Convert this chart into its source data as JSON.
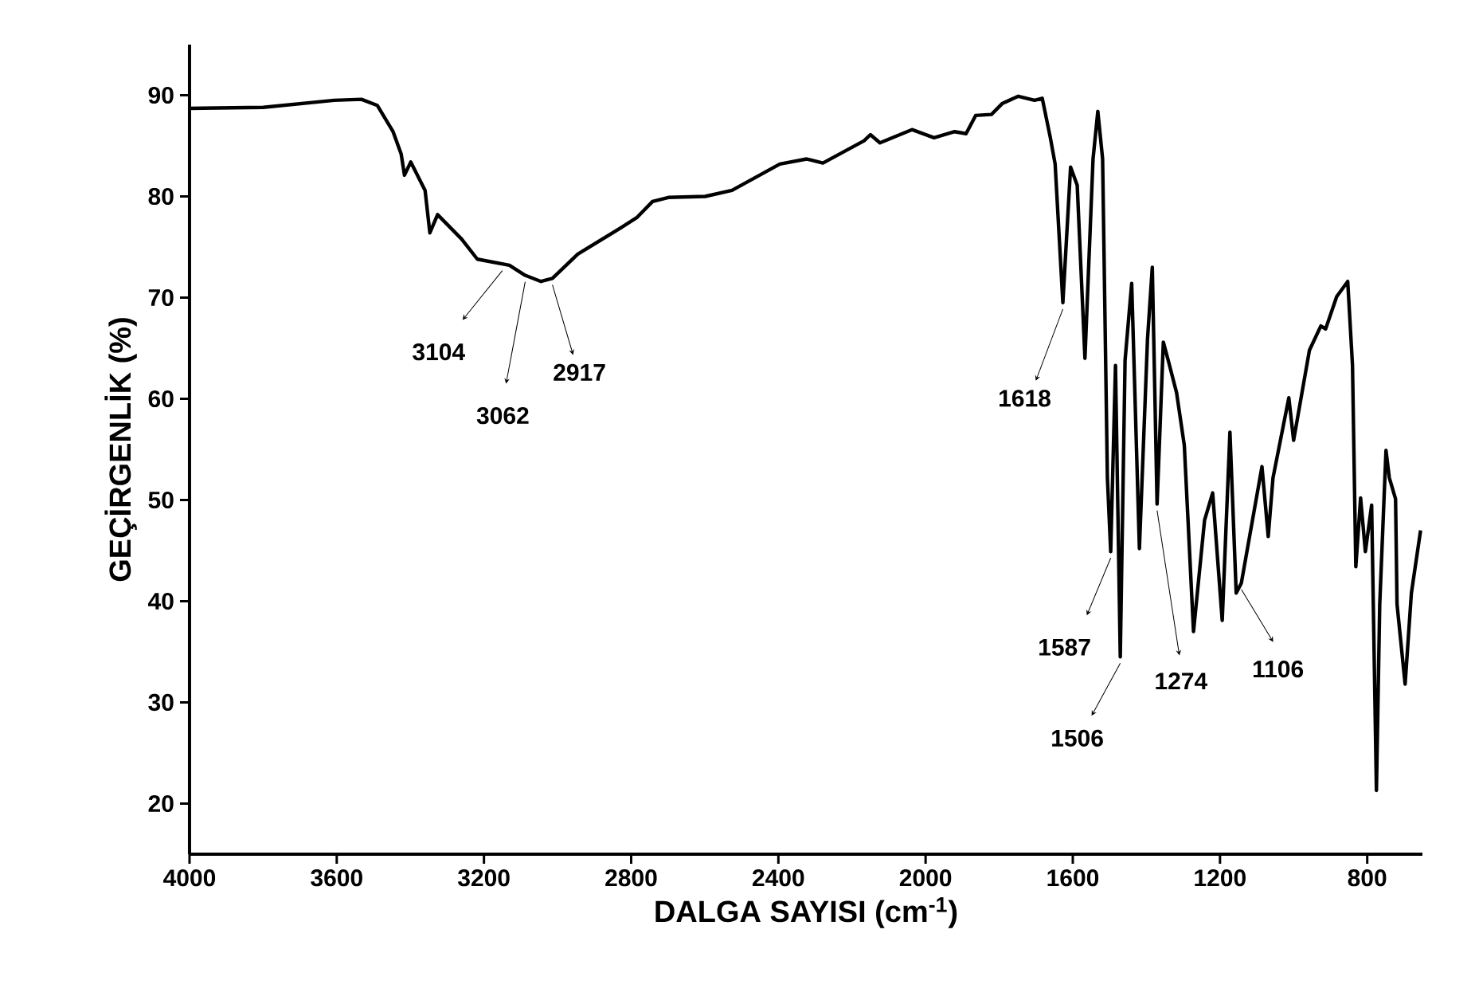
{
  "chart_data": {
    "type": "line",
    "xlabel": "DALGA SAYISI (cm$^{-1}$)",
    "ylabel": "GEÇİRGENLİK (%)",
    "color": "#000000",
    "x": [
      4000,
      3800,
      3607,
      3533,
      3490,
      3447,
      3425,
      3416,
      3399,
      3360,
      3347,
      3326,
      3261,
      3218,
      3131,
      3088,
      3045,
      3014,
      2945,
      2828,
      2785,
      2742,
      2699,
      2599,
      2526,
      2396,
      2323,
      2279,
      2167,
      2150,
      2124,
      2037,
      1977,
      1921,
      1890,
      1864,
      1821,
      1791,
      1748,
      1704,
      1683,
      1661,
      1648,
      1627,
      1606,
      1588,
      1567,
      1545,
      1532,
      1519,
      1506,
      1497,
      1484,
      1471,
      1458,
      1440,
      1419,
      1397,
      1384,
      1371,
      1354,
      1340,
      1318,
      1297,
      1272,
      1242,
      1220,
      1194,
      1173,
      1156,
      1142,
      1086,
      1069,
      1056,
      1013,
      1000,
      957,
      926,
      913,
      883,
      853,
      840,
      831,
      818,
      805,
      788,
      775,
      766,
      749,
      740,
      723,
      719,
      697,
      680,
      655
    ],
    "values": [
      88.7,
      88.8,
      89.5,
      89.6,
      89.0,
      86.4,
      84.2,
      82.1,
      83.4,
      80.6,
      76.4,
      78.2,
      75.8,
      73.8,
      73.2,
      72.2,
      71.6,
      71.9,
      74.3,
      76.9,
      77.9,
      79.5,
      79.9,
      80.0,
      80.6,
      83.2,
      83.7,
      83.3,
      85.5,
      86.1,
      85.3,
      86.6,
      85.8,
      86.4,
      86.2,
      88.0,
      88.1,
      89.2,
      89.9,
      89.5,
      89.7,
      85.8,
      83.2,
      69.5,
      82.9,
      81.1,
      64.0,
      83.7,
      88.4,
      83.7,
      52.2,
      44.9,
      63.3,
      34.5,
      63.8,
      71.4,
      45.2,
      65.9,
      73.0,
      49.6,
      65.6,
      63.7,
      60.6,
      55.4,
      37.0,
      48.0,
      50.7,
      38.1,
      56.7,
      40.8,
      41.8,
      53.3,
      46.4,
      52.2,
      60.1,
      55.9,
      64.8,
      67.2,
      66.9,
      70.1,
      71.6,
      63.3,
      43.4,
      50.2,
      44.9,
      49.5,
      21.3,
      39.7,
      54.9,
      52.2,
      50.1,
      39.7,
      31.8,
      40.8,
      47.0
    ],
    "xlim": [
      4000,
      650
    ],
    "ylim": [
      15,
      95
    ],
    "xticks": [
      4000,
      3600,
      3200,
      2800,
      2400,
      2000,
      1600,
      1200,
      800
    ],
    "yticks": [
      20,
      30,
      40,
      50,
      60,
      70,
      80,
      90
    ],
    "annotations": [
      {
        "text": "3104",
        "x": 3150,
        "y": 73.3
      },
      {
        "text": "3062",
        "x": 3088,
        "y": 72.2
      },
      {
        "text": "2917",
        "x": 3014,
        "y": 71.9
      },
      {
        "text": "1618",
        "x": 1627,
        "y": 69.5
      },
      {
        "text": "1587",
        "x": 1497,
        "y": 44.9
      },
      {
        "text": "1506",
        "x": 1471,
        "y": 34.5
      },
      {
        "text": "1274",
        "x": 1371,
        "y": 49.6
      },
      {
        "text": "1106",
        "x": 1142,
        "y": 41.8
      }
    ]
  }
}
